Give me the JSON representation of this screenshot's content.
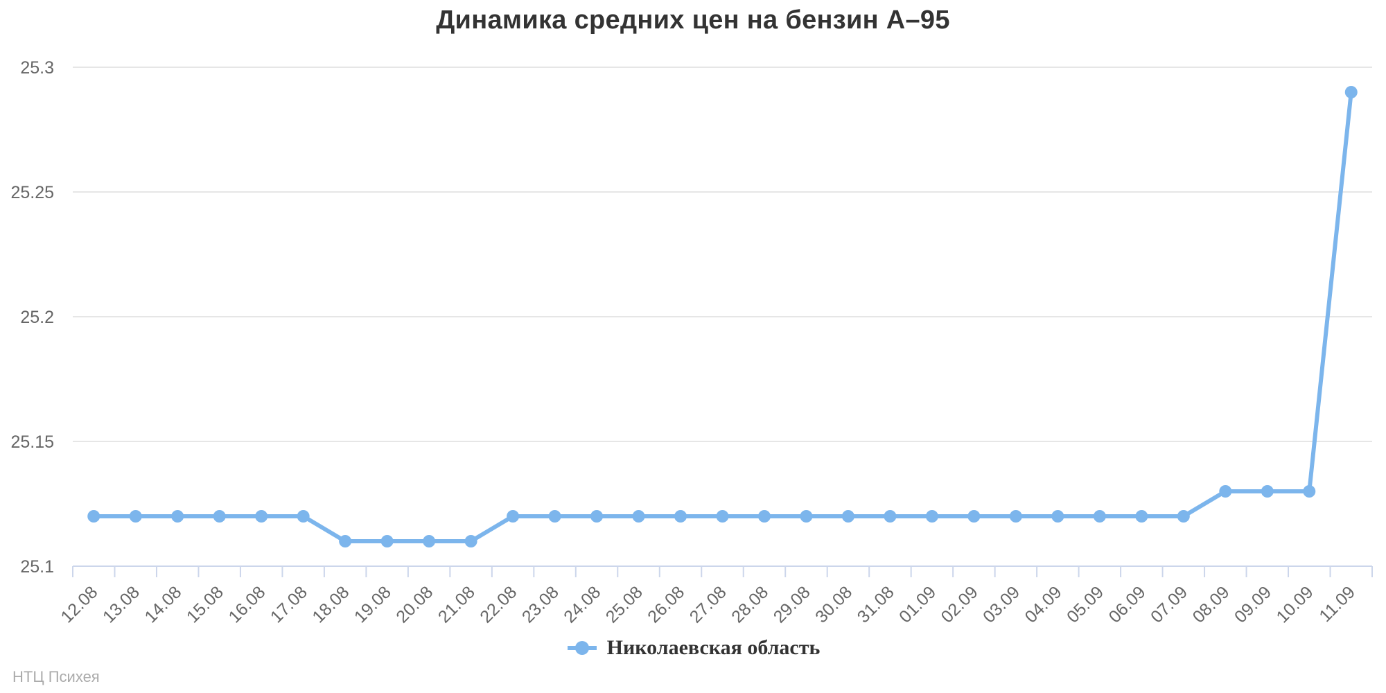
{
  "page": {
    "watermark": "НТЦ Психея"
  },
  "chart_data": {
    "type": "line",
    "title": "Динамика средних цен на бензин А–95",
    "xlabel": "",
    "ylabel": "",
    "categories": [
      "12.08",
      "13.08",
      "14.08",
      "15.08",
      "16.08",
      "17.08",
      "18.08",
      "19.08",
      "20.08",
      "21.08",
      "22.08",
      "23.08",
      "24.08",
      "25.08",
      "26.08",
      "27.08",
      "28.08",
      "29.08",
      "30.08",
      "31.08",
      "01.09",
      "02.09",
      "03.09",
      "04.09",
      "05.09",
      "06.09",
      "07.09",
      "08.09",
      "09.09",
      "10.09",
      "11.09"
    ],
    "series": [
      {
        "name": "Николаевская область",
        "values": [
          25.12,
          25.12,
          25.12,
          25.12,
          25.12,
          25.12,
          25.11,
          25.11,
          25.11,
          25.11,
          25.12,
          25.12,
          25.12,
          25.12,
          25.12,
          25.12,
          25.12,
          25.12,
          25.12,
          25.12,
          25.12,
          25.12,
          25.12,
          25.12,
          25.12,
          25.12,
          25.12,
          25.13,
          25.13,
          25.13,
          25.29
        ]
      }
    ],
    "ylim": [
      25.1,
      25.3
    ],
    "y_ticks": [
      25.1,
      25.15,
      25.2,
      25.25,
      25.3
    ],
    "y_tick_labels": [
      "25.1",
      "25.15",
      "25.2",
      "25.25",
      "25.3"
    ],
    "grid": true,
    "legend_position": "bottom",
    "marker": "circle",
    "colors": {
      "series": "#7cb5ec",
      "gridline": "#e6e6e6",
      "axis_line": "#ccd6eb",
      "title_text": "#333333",
      "axis_label": "#666666",
      "legend_text": "#333333",
      "watermark_text": "#ababab"
    }
  }
}
